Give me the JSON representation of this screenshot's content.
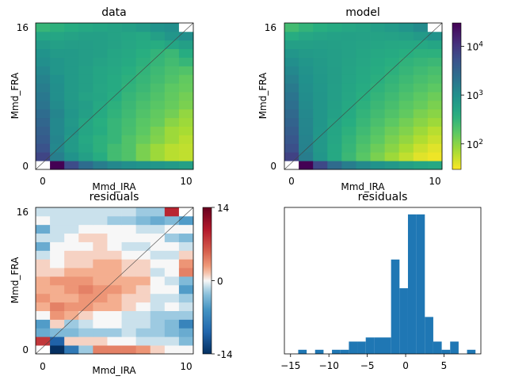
{
  "chart_data": [
    {
      "type": "heatmap",
      "title": "data",
      "xlabel": "Mmd_IRA",
      "ylabel": "Mmd_FRA",
      "x_ticks": [
        "0",
        "10"
      ],
      "y_ticks": [
        "0",
        "16"
      ],
      "xlim": [
        -0.5,
        10.5
      ],
      "ylim": [
        -0.5,
        16.5
      ],
      "scale": "log",
      "vmin": 30,
      "vmax": 30000,
      "colormap": "viridis_r",
      "mask": "upper-left corner cell and lower-left corner cell blank (white with diagonal line)",
      "diagonal_line": true,
      "values": [
        [
          null,
          30000,
          6000,
          2500,
          1600,
          1200,
          1000,
          900,
          800,
          700,
          600
        ],
        [
          7000,
          1500,
          900,
          600,
          400,
          250,
          200,
          120,
          80,
          60,
          55
        ],
        [
          5000,
          1200,
          700,
          500,
          350,
          250,
          200,
          120,
          80,
          60,
          55
        ],
        [
          4000,
          1300,
          700,
          450,
          350,
          300,
          200,
          150,
          110,
          80,
          60
        ],
        [
          3500,
          1200,
          800,
          500,
          400,
          300,
          230,
          170,
          120,
          80,
          70
        ],
        [
          3000,
          1200,
          750,
          500,
          380,
          300,
          240,
          180,
          150,
          100,
          80
        ],
        [
          2500,
          1300,
          800,
          600,
          420,
          330,
          260,
          200,
          160,
          130,
          90
        ],
        [
          2000,
          1100,
          750,
          650,
          450,
          350,
          280,
          220,
          180,
          150,
          120
        ],
        [
          1800,
          1000,
          700,
          550,
          500,
          400,
          300,
          250,
          200,
          160,
          130
        ],
        [
          1600,
          1000,
          700,
          600,
          480,
          420,
          330,
          280,
          220,
          170,
          150
        ],
        [
          1400,
          950,
          700,
          600,
          500,
          420,
          350,
          300,
          250,
          200,
          160
        ],
        [
          1200,
          800,
          700,
          600,
          500,
          450,
          380,
          320,
          270,
          220,
          200
        ],
        [
          1000,
          800,
          700,
          650,
          550,
          480,
          420,
          350,
          300,
          250,
          300
        ],
        [
          900,
          700,
          700,
          650,
          600,
          500,
          450,
          380,
          320,
          280,
          400
        ],
        [
          700,
          600,
          650,
          650,
          600,
          550,
          480,
          420,
          400,
          500,
          600
        ],
        [
          500,
          500,
          550,
          600,
          600,
          550,
          500,
          450,
          600,
          800,
          1000
        ],
        [
          300,
          350,
          400,
          450,
          500,
          550,
          600,
          700,
          900,
          1000,
          null
        ]
      ]
    },
    {
      "type": "heatmap",
      "title": "model",
      "xlabel": "Mmd_IRA",
      "ylabel": "Mmd_FRA",
      "x_ticks": [
        "0",
        "10"
      ],
      "y_ticks": [
        "0",
        "16"
      ],
      "xlim": [
        -0.5,
        10.5
      ],
      "ylim": [
        -0.5,
        16.5
      ],
      "scale": "log",
      "vmin": 30,
      "vmax": 30000,
      "colormap": "viridis_r",
      "diagonal_line": true,
      "colorbar": {
        "ticks": [
          "10^2",
          "10^3",
          "10^4"
        ],
        "tick_values": [
          100,
          1000,
          10000
        ]
      },
      "values": [
        [
          null,
          30000,
          6500,
          2600,
          1600,
          1150,
          900,
          750,
          600,
          500,
          450
        ],
        [
          7500,
          1600,
          800,
          450,
          280,
          180,
          120,
          80,
          55,
          40,
          35
        ],
        [
          5500,
          1400,
          750,
          450,
          300,
          200,
          140,
          100,
          70,
          50,
          40
        ],
        [
          4500,
          1350,
          750,
          480,
          320,
          230,
          170,
          120,
          90,
          65,
          50
        ],
        [
          3800,
          1300,
          780,
          500,
          350,
          260,
          190,
          140,
          110,
          80,
          60
        ],
        [
          3200,
          1250,
          800,
          540,
          390,
          290,
          220,
          170,
          130,
          100,
          80
        ],
        [
          2700,
          1200,
          800,
          580,
          420,
          320,
          250,
          200,
          160,
          120,
          100
        ],
        [
          2300,
          1100,
          800,
          600,
          450,
          350,
          280,
          230,
          180,
          150,
          120
        ],
        [
          2000,
          1050,
          800,
          620,
          480,
          380,
          310,
          260,
          210,
          170,
          140
        ],
        [
          1700,
          1000,
          780,
          630,
          500,
          410,
          340,
          290,
          240,
          200,
          170
        ],
        [
          1450,
          950,
          760,
          640,
          520,
          440,
          370,
          320,
          270,
          230,
          200
        ],
        [
          1200,
          880,
          740,
          640,
          540,
          460,
          400,
          350,
          300,
          260,
          230
        ],
        [
          1000,
          800,
          700,
          630,
          550,
          480,
          430,
          380,
          330,
          300,
          280
        ],
        [
          800,
          700,
          660,
          620,
          560,
          500,
          460,
          420,
          380,
          350,
          350
        ],
        [
          600,
          600,
          620,
          600,
          570,
          530,
          500,
          470,
          450,
          450,
          500
        ],
        [
          400,
          480,
          540,
          570,
          580,
          560,
          550,
          560,
          600,
          700,
          900
        ],
        [
          250,
          320,
          380,
          430,
          480,
          540,
          620,
          720,
          850,
          1100,
          null
        ]
      ]
    },
    {
      "type": "heatmap",
      "title": "residuals",
      "xlabel": "Mmd_IRA",
      "ylabel": "Mmd_FRA",
      "x_ticks": [
        "0",
        "10"
      ],
      "y_ticks": [
        "0",
        "16"
      ],
      "xlim": [
        -0.5,
        10.5
      ],
      "ylim": [
        -0.5,
        16.5
      ],
      "scale": "linear",
      "vmin": -14,
      "vmax": 14,
      "colormap": "RdBu_r",
      "diagonal_line": true,
      "colorbar": {
        "ticks": [
          "-14",
          "0",
          "14"
        ],
        "tick_values": [
          -14,
          0,
          14
        ]
      },
      "values": [
        [
          null,
          -14,
          -8,
          -2,
          4,
          4,
          4,
          3,
          1,
          0,
          0
        ],
        [
          8,
          -10,
          1,
          1,
          1,
          0,
          0,
          -1,
          -1,
          -1,
          -3
        ],
        [
          -4,
          -3,
          -3,
          -2,
          -2,
          -2,
          -1,
          -2,
          -2,
          -3,
          -4
        ],
        [
          -5,
          1,
          -2,
          -1,
          0,
          0,
          -1,
          -1,
          -2,
          -3,
          -7
        ],
        [
          0,
          3,
          2,
          1,
          0,
          0,
          -1,
          -1,
          -2,
          -2,
          -2
        ],
        [
          2,
          4,
          3,
          3,
          2,
          2,
          1,
          0,
          -1,
          0,
          -1
        ],
        [
          3,
          2,
          2,
          3,
          3,
          2,
          1,
          1,
          -1,
          -1,
          -2
        ],
        [
          2,
          2,
          3,
          4,
          3,
          3,
          2,
          1,
          0,
          0,
          -5
        ],
        [
          2,
          3,
          3,
          3,
          2,
          2,
          2,
          2,
          0,
          -1,
          -3
        ],
        [
          1,
          1,
          2,
          2,
          2,
          2,
          1,
          1,
          -1,
          0,
          4
        ],
        [
          1,
          0,
          1,
          1,
          2,
          2,
          1,
          1,
          0,
          0,
          3
        ],
        [
          -1,
          0,
          1,
          1,
          1,
          1,
          0,
          0,
          -1,
          -1,
          1
        ],
        [
          -4,
          0,
          0,
          0,
          1,
          0,
          -1,
          -1,
          0,
          0,
          -1
        ],
        [
          -1,
          -1,
          0,
          1,
          1,
          0,
          0,
          0,
          0,
          -2,
          -3
        ],
        [
          -4,
          -1,
          -1,
          0,
          0,
          0,
          0,
          -1,
          -1,
          0,
          0
        ],
        [
          0,
          -1,
          -1,
          -1,
          -1,
          -2,
          -2,
          -3,
          -4,
          -3,
          -5
        ],
        [
          -1,
          -1,
          -1,
          -1,
          -1,
          -1,
          -1,
          -2,
          -2,
          9,
          null
        ]
      ]
    },
    {
      "type": "bar",
      "subtype": "histogram",
      "title": "residuals",
      "xlim": [
        -15.8,
        9.8
      ],
      "x_ticks": [
        "−15",
        "−10",
        "−5",
        "0",
        "5"
      ],
      "x_tick_values": [
        -15,
        -10,
        -5,
        0,
        5
      ],
      "color": "#1f77b4",
      "bin_edges": [
        -14.0,
        -12.9,
        -11.8,
        -10.7,
        -9.6,
        -8.5,
        -7.4,
        -6.3,
        -5.2,
        -4.1,
        -3.0,
        -1.9,
        -0.8,
        0.3,
        1.4,
        2.5,
        3.6,
        4.7,
        5.8,
        6.9,
        8.0,
        9.1
      ],
      "values": [
        1,
        0,
        1,
        0,
        1,
        1,
        3,
        3,
        4,
        4,
        4,
        23,
        16,
        34,
        34,
        9,
        3,
        1,
        3,
        0,
        1
      ]
    }
  ]
}
